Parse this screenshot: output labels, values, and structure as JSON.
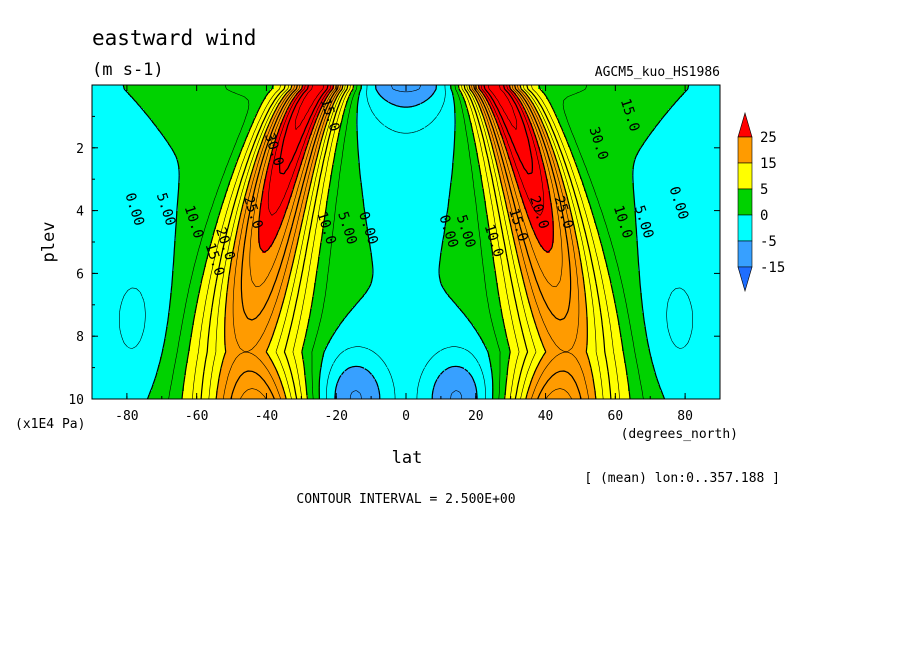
{
  "chart_data": {
    "type": "heatmap",
    "subtype": "filled-contour",
    "title": "eastward wind",
    "units": "(m s-1)",
    "experiment": "AGCM5_kuo_HS1986",
    "xlabel": "lat",
    "xunits": "(degrees_north)",
    "ylabel": "plev",
    "yunits": "(x1E4 Pa)",
    "xlim": [
      -90,
      90
    ],
    "ylim": [
      10,
      0
    ],
    "xticks": [
      "-80",
      "-60",
      "-40",
      "-20",
      "0",
      "20",
      "40",
      "60",
      "80"
    ],
    "yticks": [
      "2",
      "4",
      "6",
      "8",
      "10"
    ],
    "mean_note": "[ (mean) lon:0..357.188 ]",
    "contour_interval_text": "CONTOUR INTERVAL = 2.500E+00",
    "contour_interval": 2.5,
    "legend": {
      "placement": "right",
      "labels": [
        "25",
        "15",
        "5",
        "0",
        "-5",
        "-15"
      ],
      "levels": [
        -15,
        -5,
        0,
        5,
        15,
        25
      ],
      "colors": [
        "#1e6eff",
        "#37a0ff",
        "#00ffff",
        "#00d200",
        "#ffff00",
        "#ff9b00",
        "#ff0000"
      ]
    },
    "contour_labels": [
      {
        "text": "0.00",
        "lat": -79,
        "p": 4.0
      },
      {
        "text": "5.00",
        "lat": -70,
        "p": 4.0
      },
      {
        "text": "10.0",
        "lat": -62,
        "p": 4.4
      },
      {
        "text": "15.0",
        "lat": -56,
        "p": 5.6
      },
      {
        "text": "20.0",
        "lat": -53,
        "p": 5.1
      },
      {
        "text": "25.0",
        "lat": -45,
        "p": 4.1
      },
      {
        "text": "30.0",
        "lat": -39,
        "p": 2.1
      },
      {
        "text": "15.0",
        "lat": -23,
        "p": 1.0
      },
      {
        "text": "10.0",
        "lat": -24,
        "p": 4.6
      },
      {
        "text": "5.00",
        "lat": -18,
        "p": 4.6
      },
      {
        "text": "0.00",
        "lat": -12,
        "p": 4.6
      },
      {
        "text": "0.00",
        "lat": 11,
        "p": 4.7
      },
      {
        "text": "5.00",
        "lat": 16,
        "p": 4.7
      },
      {
        "text": "10.0",
        "lat": 24,
        "p": 5.0
      },
      {
        "text": "15.0",
        "lat": 31,
        "p": 4.5
      },
      {
        "text": "20.0",
        "lat": 37,
        "p": 4.1
      },
      {
        "text": "25.0",
        "lat": 44,
        "p": 4.1
      },
      {
        "text": "30.0",
        "lat": 54,
        "p": 1.9
      },
      {
        "text": "15.0",
        "lat": 63,
        "p": 1.0
      },
      {
        "text": "10.0",
        "lat": 61,
        "p": 4.4
      },
      {
        "text": "5.00",
        "lat": 67,
        "p": 4.4
      },
      {
        "text": "0.00",
        "lat": 77,
        "p": 3.8
      }
    ]
  }
}
